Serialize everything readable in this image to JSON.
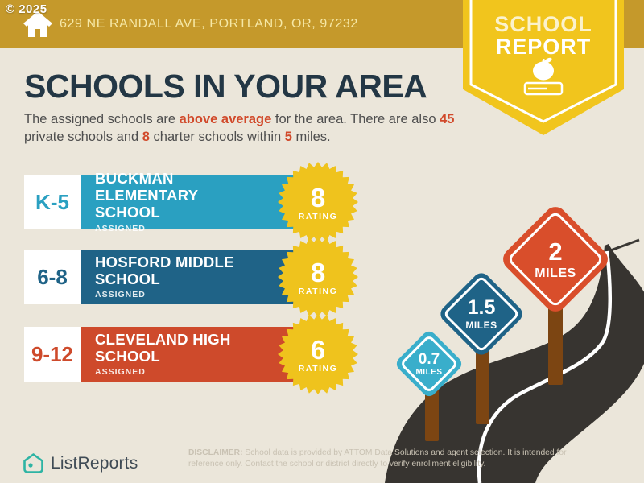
{
  "copyright": "© 2025",
  "header": {
    "address": "629 NE RANDALL AVE, PORTLAND, OR, 97232"
  },
  "badge": {
    "line1": "SCHOOL",
    "line2": "REPORT"
  },
  "title": "SCHOOLS IN YOUR AREA",
  "intro": {
    "seg1": "The assigned schools are ",
    "accent1": "above average",
    "seg2": " for the area. There are also ",
    "accent2": "45",
    "seg3": " private schools and ",
    "accent3": "8",
    "seg4": " charter schools within ",
    "accent4": "5",
    "seg5": " miles."
  },
  "schools": [
    {
      "grades": "K-5",
      "name": "BUCKMAN ELEMENTARY SCHOOL",
      "tag": "ASSIGNED",
      "rating": "8",
      "rating_label": "RATING"
    },
    {
      "grades": "6-8",
      "name": "HOSFORD MIDDLE SCHOOL",
      "tag": "ASSIGNED",
      "rating": "8",
      "rating_label": "RATING"
    },
    {
      "grades": "9-12",
      "name": "CLEVELAND HIGH SCHOOL",
      "tag": "ASSIGNED",
      "rating": "6",
      "rating_label": "RATING"
    }
  ],
  "signs": [
    {
      "value": "0.7",
      "unit": "MILES"
    },
    {
      "value": "1.5",
      "unit": "MILES"
    },
    {
      "value": "2",
      "unit": "MILES"
    }
  ],
  "footer": {
    "brand": "ListReports",
    "disclaimer_lead": "DISCLAIMER:",
    "disclaimer_rest": " School data is provided by ATTOM Data Solutions and agent selection. It is intended for reference only. Contact the school or district directly to verify enrollment eligibility."
  },
  "colors": {
    "header_gold": "#C5992B",
    "badge_yellow": "#F1C51D",
    "starburst_yellow": "#EFC31D",
    "background_cream": "#EBE6DA",
    "title_navy": "#233745",
    "accent_red": "#D1492A",
    "elementary_teal": "#2AA0C1",
    "middle_blue": "#1F6387",
    "high_red": "#CE4A2B",
    "sign_cyan": "#39AECB",
    "road_charcoal": "#373430",
    "post_brown": "#7C4512",
    "logo_teal": "#2EB4A4"
  }
}
